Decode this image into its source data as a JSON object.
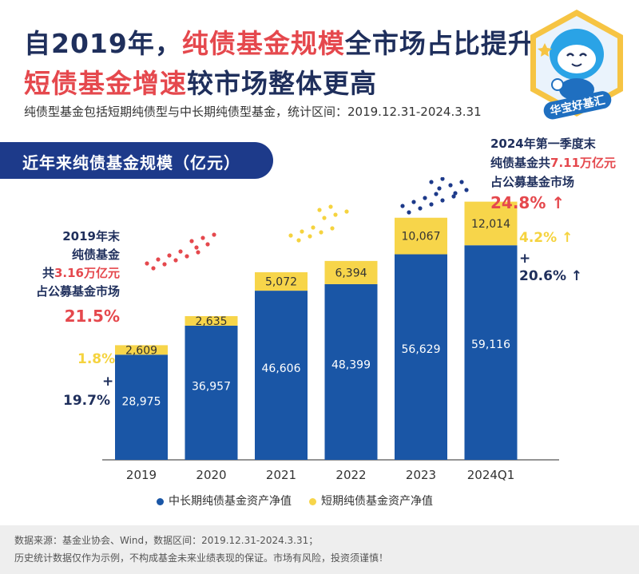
{
  "title": {
    "line1_pre": "自2019年，",
    "line1_hl": "纯债基金规模",
    "line1_post": "全市场占比提升，",
    "line2_hl": "短债基金增速",
    "line2_post": "较市场整体更高"
  },
  "subtitle": "纯债型基金包括短期纯债型与中长期纯债型基金，统计区间：2019.12.31-2024.3.31",
  "section_title": "近年来纯债基金规模（亿元）",
  "brand": "华宝好基汇",
  "note_2019": {
    "line1": "2019年末",
    "line2": "纯债基金",
    "line3_pre": "共",
    "line3_hl": "3.16万亿元",
    "line4": "占公募基金市场",
    "pct": "21.5%"
  },
  "note_2024": {
    "line1": "2024年第一季度末",
    "line2_pre": "纯债基金共",
    "line2_hl": "7.11万亿元",
    "line3": "占公募基金市场",
    "pct": "24.8%",
    "arrow": "↑"
  },
  "growth_2019": {
    "short_pct": "1.8%",
    "plus": "+",
    "long_pct": "19.7%"
  },
  "growth_2024": {
    "short_pct": "4.2%",
    "short_arrow": "↑",
    "plus": "+",
    "long_pct": "20.6%",
    "long_arrow": "↑"
  },
  "legend": {
    "long": "中长期纯债基金资产净值",
    "short": "短期纯债基金资产净值"
  },
  "footer": {
    "line1": "数据来源：基金业协会、Wind，数据区间：2019.12.31-2024.3.31；",
    "line2": "历史统计数据仅作为示例，不构成基金未来业绩表现的保证。市场有风险，投资须谨慎！"
  },
  "colors": {
    "navy": "#1f2f5c",
    "bar_long": "#1a56a6",
    "bar_short": "#f7d54a",
    "highlight_red": "#e5484d",
    "pill": "#1d3a8a"
  },
  "chart_data": {
    "type": "bar",
    "stacked": true,
    "categories": [
      "2019",
      "2020",
      "2021",
      "2022",
      "2023",
      "2024Q1"
    ],
    "series": [
      {
        "name": "中长期纯债基金资产净值",
        "values": [
          28975,
          36957,
          46606,
          48399,
          56629,
          59116
        ],
        "labels": [
          "28,975",
          "36,957",
          "46,606",
          "48,399",
          "56,629",
          "59,116"
        ]
      },
      {
        "name": "短期纯债基金资产净值",
        "values": [
          2609,
          2635,
          5072,
          6394,
          10067,
          12014
        ],
        "labels": [
          "2,609",
          "2,635",
          "5,072",
          "6,394",
          "10,067",
          "12,014"
        ]
      }
    ],
    "ylim": [
      0,
      75000
    ],
    "grid": false,
    "legend": "bottom"
  }
}
